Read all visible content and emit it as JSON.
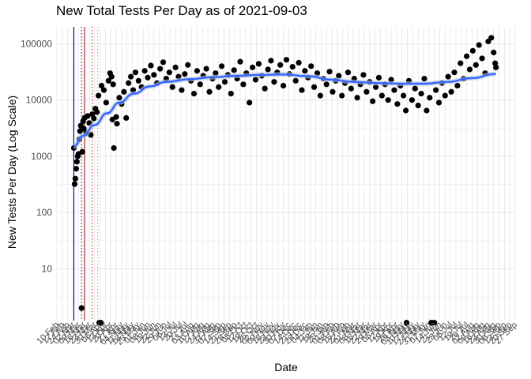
{
  "chart_data": {
    "type": "scatter",
    "title": "New Total Tests Per Day as of 2021-09-03",
    "xlabel": "Date",
    "ylabel": "New Tests Per Day (Log Scale)",
    "y_scale": "log10",
    "ylim": [
      1.2,
      200000
    ],
    "xlim": [
      "2020-02-10",
      "2021-09-27"
    ],
    "grid": true,
    "y_ticks": [
      10,
      100,
      1000,
      10000,
      100000
    ],
    "y_tick_labels": [
      "10",
      "100",
      "1000",
      "10000",
      "100000"
    ],
    "x_tick_labels": [
      "10 Feb",
      "17 Feb",
      "24 Feb",
      "02 Mar",
      "09 Mar",
      "16 Mar",
      "23 Mar",
      "30 Mar",
      "06 Apr",
      "13 Apr",
      "20 Apr",
      "27 Apr",
      "04 May",
      "11 May",
      "18 May",
      "25 May",
      "01 Jun",
      "08 Jun",
      "15 Jun",
      "22 Jun",
      "29 Jun",
      "06 Jul",
      "13 Jul",
      "20 Jul",
      "27 Jul",
      "03 Aug",
      "10 Aug",
      "17 Aug",
      "24 Aug",
      "31 Aug",
      "07 Sep",
      "14 Sep",
      "21 Sep",
      "28 Sep",
      "05 Oct",
      "12 Oct",
      "19 Oct",
      "26 Oct",
      "02 Nov",
      "09 Nov",
      "16 Nov",
      "23 Nov",
      "30 Nov",
      "07 Dec",
      "14 Dec",
      "21 Dec",
      "28 Dec",
      "04 Jan",
      "11 Jan",
      "18 Jan",
      "25 Jan",
      "01 Feb",
      "08 Feb",
      "15 Feb",
      "22 Feb",
      "01 Mar",
      "08 Mar",
      "15 Mar",
      "22 Mar",
      "29 Mar",
      "05 Apr",
      "12 Apr",
      "19 Apr",
      "26 Apr",
      "03 May",
      "10 May",
      "17 May",
      "24 May",
      "31 May",
      "07 Jun",
      "14 Jun",
      "21 Jun",
      "28 Jun",
      "05 Jul",
      "12 Jul",
      "19 Jul",
      "26 Jul",
      "02 Aug",
      "09 Aug",
      "16 Aug",
      "23 Aug",
      "30 Aug",
      "06 Sep",
      "13 Sep",
      "20 Sep",
      "27 Sep"
    ],
    "reference_lines": [
      {
        "date": "2020-03-03",
        "color": "#00008b",
        "style": "solid"
      },
      {
        "date": "2020-03-13",
        "color": "#0000cd",
        "style": "dotted"
      },
      {
        "date": "2020-03-17",
        "color": "#b22222",
        "style": "solid"
      },
      {
        "date": "2020-03-27",
        "color": "#b22222",
        "style": "dotted"
      },
      {
        "date": "2020-04-03",
        "color": "#ff8c8c",
        "style": "dotted"
      }
    ],
    "smooth_color": "#3366ff",
    "point_color": "#000000",
    "smooth_trend": [
      {
        "x": "2020-03-03",
        "y": 1500
      },
      {
        "x": "2020-03-15",
        "y": 2300
      },
      {
        "x": "2020-03-30",
        "y": 3600
      },
      {
        "x": "2020-04-15",
        "y": 5800
      },
      {
        "x": "2020-05-01",
        "y": 9000
      },
      {
        "x": "2020-05-20",
        "y": 13000
      },
      {
        "x": "2020-06-10",
        "y": 17500
      },
      {
        "x": "2020-07-01",
        "y": 21000
      },
      {
        "x": "2020-08-01",
        "y": 23500
      },
      {
        "x": "2020-09-01",
        "y": 25500
      },
      {
        "x": "2020-10-01",
        "y": 27000
      },
      {
        "x": "2020-11-01",
        "y": 28000
      },
      {
        "x": "2020-12-01",
        "y": 28500
      },
      {
        "x": "2021-01-01",
        "y": 26500
      },
      {
        "x": "2021-02-01",
        "y": 23000
      },
      {
        "x": "2021-03-01",
        "y": 21000
      },
      {
        "x": "2021-04-01",
        "y": 20000
      },
      {
        "x": "2021-05-01",
        "y": 19500
      },
      {
        "x": "2021-06-01",
        "y": 19500
      },
      {
        "x": "2021-07-01",
        "y": 21000
      },
      {
        "x": "2021-08-01",
        "y": 24500
      },
      {
        "x": "2021-09-02",
        "y": 29000
      }
    ],
    "points": [
      {
        "x": "2020-03-03",
        "y": 1400
      },
      {
        "x": "2020-03-04",
        "y": 320
      },
      {
        "x": "2020-03-05",
        "y": 400
      },
      {
        "x": "2020-03-06",
        "y": 600
      },
      {
        "x": "2020-03-07",
        "y": 800
      },
      {
        "x": "2020-03-08",
        "y": 1000
      },
      {
        "x": "2020-03-09",
        "y": 1100
      },
      {
        "x": "2020-03-10",
        "y": 2000
      },
      {
        "x": "2020-03-11",
        "y": 2800
      },
      {
        "x": "2020-03-12",
        "y": 3500
      },
      {
        "x": "2020-03-13",
        "y": 2
      },
      {
        "x": "2020-03-14",
        "y": 1200
      },
      {
        "x": "2020-03-15",
        "y": 4200
      },
      {
        "x": "2020-03-16",
        "y": 3100
      },
      {
        "x": "2020-03-17",
        "y": 4800
      },
      {
        "x": "2020-03-19",
        "y": 2600
      },
      {
        "x": "2020-03-21",
        "y": 5200
      },
      {
        "x": "2020-03-23",
        "y": 3900
      },
      {
        "x": "2020-03-25",
        "y": 2400
      },
      {
        "x": "2020-03-27",
        "y": 5600
      },
      {
        "x": "2020-03-29",
        "y": 4700
      },
      {
        "x": "2020-03-31",
        "y": 7000
      },
      {
        "x": "2020-04-02",
        "y": 6100
      },
      {
        "x": "2020-04-04",
        "y": 12000
      },
      {
        "x": "2020-04-05",
        "y": 1.1
      },
      {
        "x": "2020-04-07",
        "y": 1.1
      },
      {
        "x": "2020-04-08",
        "y": 18000
      },
      {
        "x": "2020-04-11",
        "y": 15000
      },
      {
        "x": "2020-04-14",
        "y": 9000
      },
      {
        "x": "2020-04-17",
        "y": 22000
      },
      {
        "x": "2020-04-19",
        "y": 30000
      },
      {
        "x": "2020-04-21",
        "y": 26000
      },
      {
        "x": "2020-04-22",
        "y": 4500
      },
      {
        "x": "2020-04-23",
        "y": 19000
      },
      {
        "x": "2020-04-24",
        "y": 1400
      },
      {
        "x": "2020-04-27",
        "y": 5000
      },
      {
        "x": "2020-04-28",
        "y": 3800
      },
      {
        "x": "2020-05-01",
        "y": 11000
      },
      {
        "x": "2020-05-04",
        "y": 8500
      },
      {
        "x": "2020-05-07",
        "y": 14000
      },
      {
        "x": "2020-05-10",
        "y": 4800
      },
      {
        "x": "2020-05-13",
        "y": 20000
      },
      {
        "x": "2020-05-16",
        "y": 26000
      },
      {
        "x": "2020-05-19",
        "y": 15000
      },
      {
        "x": "2020-05-22",
        "y": 31000
      },
      {
        "x": "2020-05-26",
        "y": 22000
      },
      {
        "x": "2020-05-30",
        "y": 17000
      },
      {
        "x": "2020-06-03",
        "y": 33000
      },
      {
        "x": "2020-06-07",
        "y": 25000
      },
      {
        "x": "2020-06-11",
        "y": 41000
      },
      {
        "x": "2020-06-15",
        "y": 28000
      },
      {
        "x": "2020-06-19",
        "y": 20000
      },
      {
        "x": "2020-06-23",
        "y": 36000
      },
      {
        "x": "2020-06-27",
        "y": 47000
      },
      {
        "x": "2020-07-01",
        "y": 24000
      },
      {
        "x": "2020-07-05",
        "y": 31000
      },
      {
        "x": "2020-07-09",
        "y": 17000
      },
      {
        "x": "2020-07-13",
        "y": 38000
      },
      {
        "x": "2020-07-17",
        "y": 26000
      },
      {
        "x": "2020-07-21",
        "y": 15000
      },
      {
        "x": "2020-07-25",
        "y": 29000
      },
      {
        "x": "2020-07-29",
        "y": 42000
      },
      {
        "x": "2020-08-02",
        "y": 22000
      },
      {
        "x": "2020-08-06",
        "y": 13000
      },
      {
        "x": "2020-08-10",
        "y": 33000
      },
      {
        "x": "2020-08-14",
        "y": 19000
      },
      {
        "x": "2020-08-18",
        "y": 27000
      },
      {
        "x": "2020-08-22",
        "y": 36000
      },
      {
        "x": "2020-08-26",
        "y": 14000
      },
      {
        "x": "2020-08-30",
        "y": 24000
      },
      {
        "x": "2020-09-03",
        "y": 30000
      },
      {
        "x": "2020-09-07",
        "y": 17000
      },
      {
        "x": "2020-09-11",
        "y": 40000
      },
      {
        "x": "2020-09-15",
        "y": 21000
      },
      {
        "x": "2020-09-19",
        "y": 28000
      },
      {
        "x": "2020-09-23",
        "y": 13000
      },
      {
        "x": "2020-09-27",
        "y": 34000
      },
      {
        "x": "2020-10-01",
        "y": 24000
      },
      {
        "x": "2020-10-05",
        "y": 48000
      },
      {
        "x": "2020-10-09",
        "y": 19000
      },
      {
        "x": "2020-10-13",
        "y": 30000
      },
      {
        "x": "2020-10-17",
        "y": 9000
      },
      {
        "x": "2020-10-21",
        "y": 38000
      },
      {
        "x": "2020-10-25",
        "y": 23000
      },
      {
        "x": "2020-10-29",
        "y": 44000
      },
      {
        "x": "2020-11-02",
        "y": 27000
      },
      {
        "x": "2020-11-06",
        "y": 16000
      },
      {
        "x": "2020-11-10",
        "y": 35000
      },
      {
        "x": "2020-11-14",
        "y": 50000
      },
      {
        "x": "2020-11-18",
        "y": 21000
      },
      {
        "x": "2020-11-22",
        "y": 31000
      },
      {
        "x": "2020-11-26",
        "y": 42000
      },
      {
        "x": "2020-11-30",
        "y": 18000
      },
      {
        "x": "2020-12-04",
        "y": 52000
      },
      {
        "x": "2020-12-08",
        "y": 29000
      },
      {
        "x": "2020-12-12",
        "y": 39000
      },
      {
        "x": "2020-12-16",
        "y": 22000
      },
      {
        "x": "2020-12-20",
        "y": 46000
      },
      {
        "x": "2020-12-24",
        "y": 15000
      },
      {
        "x": "2020-12-28",
        "y": 33000
      },
      {
        "x": "2021-01-01",
        "y": 25000
      },
      {
        "x": "2021-01-05",
        "y": 40000
      },
      {
        "x": "2021-01-09",
        "y": 17000
      },
      {
        "x": "2021-01-13",
        "y": 30000
      },
      {
        "x": "2021-01-17",
        "y": 12000
      },
      {
        "x": "2021-01-21",
        "y": 24000
      },
      {
        "x": "2021-01-25",
        "y": 19000
      },
      {
        "x": "2021-01-29",
        "y": 32000
      },
      {
        "x": "2021-02-02",
        "y": 14000
      },
      {
        "x": "2021-02-06",
        "y": 22000
      },
      {
        "x": "2021-02-10",
        "y": 27000
      },
      {
        "x": "2021-02-14",
        "y": 12000
      },
      {
        "x": "2021-02-18",
        "y": 20000
      },
      {
        "x": "2021-02-22",
        "y": 31000
      },
      {
        "x": "2021-02-26",
        "y": 16000
      },
      {
        "x": "2021-03-02",
        "y": 24000
      },
      {
        "x": "2021-03-06",
        "y": 11000
      },
      {
        "x": "2021-03-10",
        "y": 19000
      },
      {
        "x": "2021-03-14",
        "y": 28000
      },
      {
        "x": "2021-03-18",
        "y": 14000
      },
      {
        "x": "2021-03-22",
        "y": 21000
      },
      {
        "x": "2021-03-26",
        "y": 9500
      },
      {
        "x": "2021-03-30",
        "y": 17000
      },
      {
        "x": "2021-04-03",
        "y": 25000
      },
      {
        "x": "2021-04-07",
        "y": 12000
      },
      {
        "x": "2021-04-11",
        "y": 19000
      },
      {
        "x": "2021-04-15",
        "y": 10000
      },
      {
        "x": "2021-04-19",
        "y": 23000
      },
      {
        "x": "2021-04-23",
        "y": 15000
      },
      {
        "x": "2021-04-27",
        "y": 8500
      },
      {
        "x": "2021-05-01",
        "y": 18000
      },
      {
        "x": "2021-05-05",
        "y": 12000
      },
      {
        "x": "2021-05-08",
        "y": 6500
      },
      {
        "x": "2021-05-09",
        "y": 1.1
      },
      {
        "x": "2021-05-12",
        "y": 22000
      },
      {
        "x": "2021-05-16",
        "y": 10000
      },
      {
        "x": "2021-05-20",
        "y": 16000
      },
      {
        "x": "2021-05-24",
        "y": 8000
      },
      {
        "x": "2021-05-28",
        "y": 13000
      },
      {
        "x": "2021-06-01",
        "y": 24000
      },
      {
        "x": "2021-06-04",
        "y": 6500
      },
      {
        "x": "2021-06-08",
        "y": 11000
      },
      {
        "x": "2021-06-10",
        "y": 1.1
      },
      {
        "x": "2021-06-12",
        "y": 1.1
      },
      {
        "x": "2021-06-14",
        "y": 1.1
      },
      {
        "x": "2021-06-16",
        "y": 15000
      },
      {
        "x": "2021-06-20",
        "y": 9000
      },
      {
        "x": "2021-06-24",
        "y": 20000
      },
      {
        "x": "2021-06-28",
        "y": 12000
      },
      {
        "x": "2021-07-02",
        "y": 26000
      },
      {
        "x": "2021-07-06",
        "y": 14000
      },
      {
        "x": "2021-07-10",
        "y": 31000
      },
      {
        "x": "2021-07-14",
        "y": 18000
      },
      {
        "x": "2021-07-18",
        "y": 45000
      },
      {
        "x": "2021-07-22",
        "y": 24000
      },
      {
        "x": "2021-07-26",
        "y": 60000
      },
      {
        "x": "2021-07-30",
        "y": 35000
      },
      {
        "x": "2021-08-03",
        "y": 75000
      },
      {
        "x": "2021-08-07",
        "y": 42000
      },
      {
        "x": "2021-08-11",
        "y": 95000
      },
      {
        "x": "2021-08-15",
        "y": 55000
      },
      {
        "x": "2021-08-19",
        "y": 30000
      },
      {
        "x": "2021-08-23",
        "y": 110000
      },
      {
        "x": "2021-08-27",
        "y": 128000
      },
      {
        "x": "2021-08-30",
        "y": 70000
      },
      {
        "x": "2021-09-01",
        "y": 45000
      },
      {
        "x": "2021-09-02",
        "y": 38000
      }
    ]
  }
}
